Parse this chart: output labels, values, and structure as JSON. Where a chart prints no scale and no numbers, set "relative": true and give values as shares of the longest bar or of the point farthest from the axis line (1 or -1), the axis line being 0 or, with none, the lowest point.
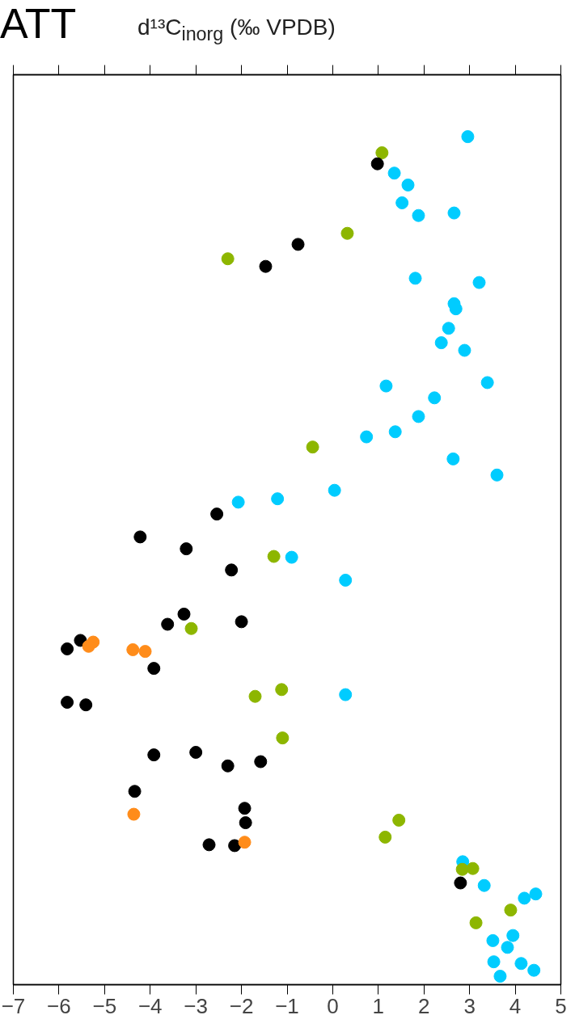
{
  "chart_data": {
    "type": "scatter",
    "xlabel": "d¹³C$_{inorg}$ (‰ VPDB)",
    "annotations": [
      "ATT"
    ],
    "relative": true,
    "xlim": [
      -7,
      5
    ],
    "xticks": [
      -7,
      -6,
      -5,
      -4,
      -3,
      -2,
      -1,
      0,
      1,
      2,
      3,
      4,
      5
    ],
    "tick_labels": "x",
    "grid": false,
    "marker": "circle",
    "series": [
      {
        "color": "#00ccff",
        "x": [
          2.96,
          1.35,
          1.65,
          1.52,
          1.88,
          2.66,
          1.81,
          3.21,
          2.66,
          2.7,
          2.54,
          2.38,
          2.89,
          1.17,
          3.39,
          2.23,
          1.88,
          1.37,
          0.74,
          2.64,
          3.6,
          0.04,
          -1.21,
          -2.07,
          -0.9,
          0.28,
          0.28,
          2.85,
          3.32,
          4.2,
          4.45,
          3.95,
          3.51,
          3.83,
          3.53,
          4.13,
          4.41,
          3.67
        ],
        "values": [
          1.0,
          0.957,
          0.943,
          0.922,
          0.907,
          0.91,
          0.833,
          0.828,
          0.803,
          0.797,
          0.774,
          0.757,
          0.748,
          0.706,
          0.71,
          0.692,
          0.67,
          0.652,
          0.646,
          0.62,
          0.601,
          0.583,
          0.573,
          0.569,
          0.504,
          0.477,
          0.342,
          0.145,
          0.117,
          0.102,
          0.107,
          0.058,
          0.052,
          0.044,
          0.027,
          0.025,
          0.017,
          0.01
        ]
      },
      {
        "color": "#8db600",
        "x": [
          1.08,
          0.32,
          -2.3,
          -0.44,
          -1.29,
          -3.1,
          -1.12,
          -1.7,
          -1.1,
          1.45,
          1.15,
          2.84,
          3.07,
          3.9,
          3.14
        ],
        "values": [
          0.981,
          0.886,
          0.856,
          0.634,
          0.505,
          0.42,
          0.348,
          0.34,
          0.291,
          0.194,
          0.174,
          0.136,
          0.137,
          0.088,
          0.073
        ]
      },
      {
        "color": "#000000",
        "x": [
          0.98,
          -0.76,
          -1.47,
          -2.54,
          -4.22,
          -3.21,
          -2.22,
          -3.26,
          -3.62,
          -2.0,
          -5.53,
          -5.82,
          -3.92,
          -5.82,
          -5.41,
          -3.92,
          -3.0,
          -2.3,
          -1.58,
          -4.34,
          -1.93,
          -1.91,
          -2.71,
          -2.15,
          2.8
        ],
        "values": [
          0.968,
          0.873,
          0.847,
          0.555,
          0.528,
          0.514,
          0.489,
          0.437,
          0.425,
          0.428,
          0.406,
          0.396,
          0.373,
          0.333,
          0.33,
          0.271,
          0.274,
          0.258,
          0.263,
          0.228,
          0.208,
          0.191,
          0.165,
          0.164,
          0.12
        ]
      },
      {
        "color": "#ff8c1a",
        "x": [
          -5.25,
          -5.35,
          -4.38,
          -4.11,
          -4.36,
          -1.93
        ],
        "values": [
          0.404,
          0.399,
          0.395,
          0.393,
          0.201,
          0.168
        ]
      }
    ]
  }
}
